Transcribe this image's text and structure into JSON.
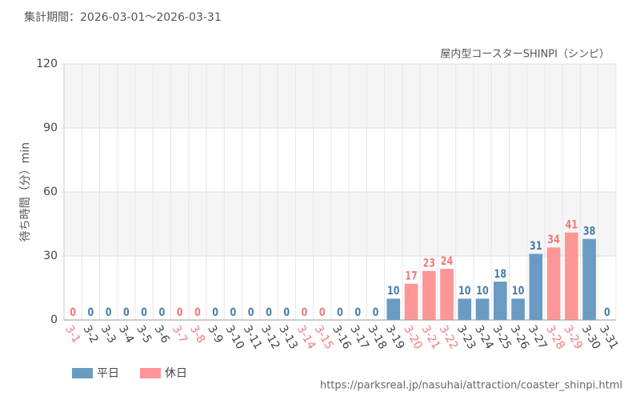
{
  "chart_data": {
    "type": "bar",
    "title": "集計期間：2026-03-01～2026-03-31",
    "subtitle": "屋内型コースターSHINPI（シンピ）",
    "y_label": "待ち時間（分）min",
    "source": "https://parksreal.jp/nasuhai/attraction/coaster_shinpi.html",
    "categories": [
      "3-1",
      "3-2",
      "3-3",
      "3-4",
      "3-5",
      "3-6",
      "3-7",
      "3-8",
      "3-9",
      "3-10",
      "3-11",
      "3-12",
      "3-13",
      "3-14",
      "3-15",
      "3-16",
      "3-17",
      "3-18",
      "3-19",
      "3-20",
      "3-21",
      "3-22",
      "3-23",
      "3-24",
      "3-25",
      "3-26",
      "3-27",
      "3-28",
      "3-29",
      "3-30",
      "3-31"
    ],
    "series": [
      {
        "name": "平日",
        "color": "#6a9bc3",
        "values": [
          null,
          0,
          0,
          0,
          0,
          0,
          null,
          null,
          0,
          0,
          0,
          0,
          0,
          null,
          null,
          0,
          0,
          0,
          10,
          null,
          null,
          null,
          10,
          10,
          18,
          10,
          31,
          null,
          null,
          38,
          0
        ]
      },
      {
        "name": "休日",
        "color": "#ff9696",
        "values": [
          0,
          null,
          null,
          null,
          null,
          null,
          0,
          0,
          null,
          null,
          null,
          null,
          null,
          0,
          0,
          null,
          null,
          null,
          null,
          17,
          23,
          24,
          null,
          null,
          null,
          null,
          null,
          34,
          41,
          null,
          null
        ]
      }
    ],
    "ylim": [
      0,
      120
    ],
    "yticks": [
      0,
      30,
      60,
      90,
      120
    ],
    "grid": true,
    "legend": "bottom-left"
  }
}
